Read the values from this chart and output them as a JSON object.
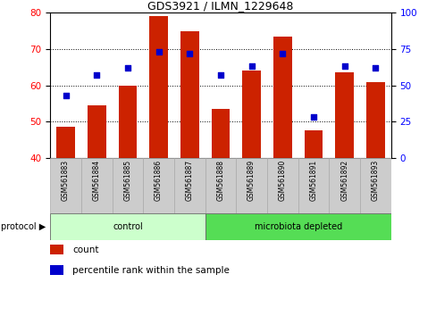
{
  "title": "GDS3921 / ILMN_1229648",
  "samples": [
    "GSM561883",
    "GSM561884",
    "GSM561885",
    "GSM561886",
    "GSM561887",
    "GSM561888",
    "GSM561889",
    "GSM561890",
    "GSM561891",
    "GSM561892",
    "GSM561893"
  ],
  "counts": [
    48.5,
    54.5,
    60.0,
    79.0,
    75.0,
    53.5,
    64.0,
    73.5,
    47.5,
    63.5,
    61.0
  ],
  "percentile": [
    43,
    57,
    62,
    73,
    72,
    57,
    63,
    72,
    28,
    63,
    62
  ],
  "bar_color": "#cc2200",
  "dot_color": "#0000cc",
  "ylim_left": [
    40,
    80
  ],
  "ylim_right": [
    0,
    100
  ],
  "yticks_left": [
    40,
    50,
    60,
    70,
    80
  ],
  "yticks_right": [
    0,
    25,
    50,
    75,
    100
  ],
  "groups": [
    {
      "label": "control",
      "start": 0,
      "end": 5,
      "color": "#ccffcc"
    },
    {
      "label": "microbiota depleted",
      "start": 5,
      "end": 11,
      "color": "#55dd55"
    }
  ],
  "protocol_label": "protocol",
  "legend_count": "count",
  "legend_pct": "percentile rank within the sample",
  "bg_color": "#ffffff",
  "plot_bg": "#ffffff",
  "bar_bottom": 40,
  "bar_width": 0.6,
  "label_gray": "#cccccc",
  "label_gray_edge": "#aaaaaa"
}
